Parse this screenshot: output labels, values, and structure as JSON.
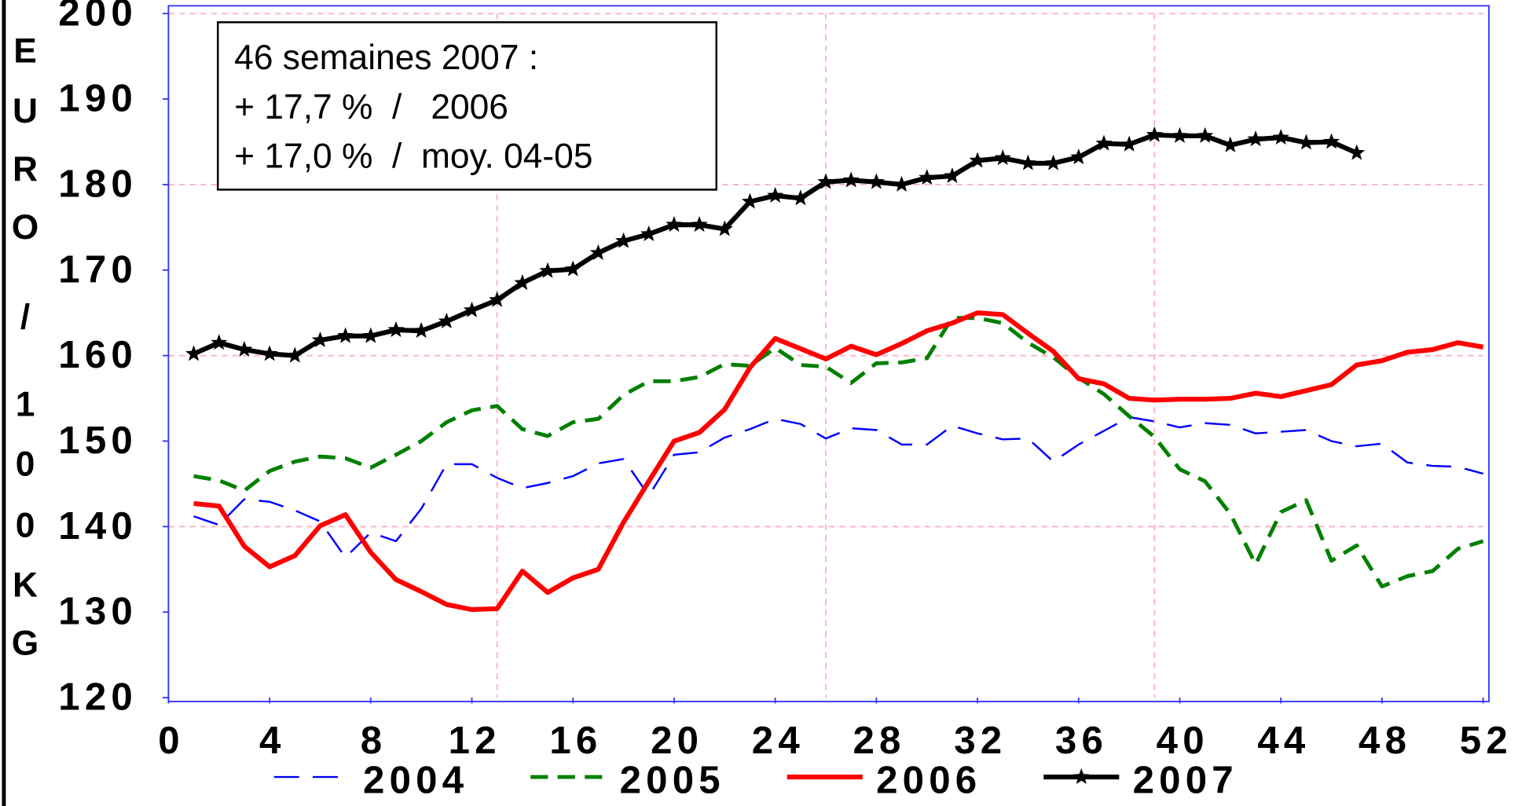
{
  "chart_data": {
    "type": "line",
    "y_label": "EURO/100KG",
    "annotation": [
      "46 semaines 2007 :",
      "+ 17,7 %  /   2006",
      "+ 17,0 %  /  moy. 04-05"
    ],
    "x": [
      1,
      2,
      3,
      4,
      5,
      6,
      7,
      8,
      9,
      10,
      11,
      12,
      13,
      14,
      15,
      16,
      17,
      18,
      19,
      20,
      21,
      22,
      23,
      24,
      25,
      26,
      27,
      28,
      29,
      30,
      31,
      32,
      33,
      34,
      35,
      36,
      37,
      38,
      39,
      40,
      41,
      42,
      43,
      44,
      45,
      46,
      47,
      48,
      49,
      50,
      51,
      52
    ],
    "series": [
      {
        "name": "2004",
        "color": "#0000ff",
        "line_style": "long-dash",
        "width": 2,
        "values": [
          141.2,
          140.2,
          143.2,
          142.9,
          141.9,
          140.6,
          136.4,
          139.3,
          138.3,
          142.1,
          147.3,
          147.3,
          145.7,
          144.5,
          145.1,
          145.9,
          147.4,
          147.9,
          143.6,
          148.4,
          148.7,
          150.4,
          151.4,
          152.6,
          152.0,
          150.3,
          151.5,
          151.3,
          149.6,
          149.6,
          151.8,
          150.9,
          150.2,
          150.3,
          147.6,
          149.6,
          151.2,
          152.8,
          152.3,
          151.6,
          152.1,
          151.9,
          150.9,
          151.1,
          151.3,
          150.0,
          149.4,
          149.7,
          147.5,
          147.1,
          147.0,
          146.2
        ]
      },
      {
        "name": "2005",
        "color": "#008000",
        "line_style": "dash",
        "width": 4,
        "values": [
          145.9,
          145.4,
          144.2,
          146.5,
          147.6,
          148.2,
          148.0,
          146.9,
          148.4,
          150.0,
          152.2,
          153.6,
          154.1,
          151.4,
          150.6,
          152.2,
          152.6,
          155.4,
          157.0,
          157.0,
          157.5,
          159.0,
          158.8,
          160.9,
          158.9,
          158.7,
          156.8,
          159.1,
          159.2,
          159.7,
          164.4,
          164.4,
          163.8,
          161.5,
          159.8,
          157.4,
          155.5,
          152.9,
          150.5,
          146.7,
          145.3,
          141.5,
          135.6,
          141.7,
          143.1,
          136.0,
          137.8,
          133.0,
          134.2,
          134.8,
          137.4,
          138.3
        ]
      },
      {
        "name": "2006",
        "color": "#ff0000",
        "line_style": "solid",
        "width": 5,
        "values": [
          142.7,
          142.4,
          137.7,
          135.3,
          136.6,
          140.1,
          141.4,
          137.0,
          133.8,
          132.4,
          130.9,
          130.3,
          130.4,
          134.8,
          132.3,
          134.0,
          135.0,
          140.5,
          145.3,
          150.0,
          151.0,
          153.7,
          158.6,
          162.0,
          160.8,
          159.6,
          161.1,
          160.1,
          161.4,
          162.9,
          163.8,
          165.0,
          164.8,
          162.6,
          160.5,
          157.3,
          156.7,
          155.0,
          154.8,
          154.9,
          154.9,
          155.0,
          155.6,
          155.2,
          155.9,
          156.6,
          158.9,
          159.4,
          160.4,
          160.7,
          161.5,
          161.0
        ]
      },
      {
        "name": "2007",
        "color": "#000000",
        "line_style": "solid",
        "width": 5,
        "marker": "star",
        "values": [
          160.2,
          161.5,
          160.7,
          160.2,
          160.0,
          161.8,
          162.3,
          162.3,
          163.0,
          162.9,
          164.0,
          165.3,
          166.5,
          168.5,
          169.9,
          170.1,
          172.0,
          173.4,
          174.2,
          175.3,
          175.3,
          174.8,
          178.0,
          178.7,
          178.4,
          180.3,
          180.5,
          180.3,
          180.0,
          180.8,
          181.0,
          182.8,
          183.1,
          182.5,
          182.5,
          183.2,
          184.8,
          184.7,
          185.8,
          185.7,
          185.7,
          184.6,
          185.3,
          185.5,
          184.9,
          185.0,
          183.7,
          null,
          null,
          null,
          null,
          null
        ]
      }
    ],
    "xlim": [
      0,
      52
    ],
    "xticks": [
      0,
      4,
      8,
      12,
      16,
      20,
      24,
      28,
      32,
      36,
      40,
      44,
      48,
      52
    ],
    "ylim": [
      120,
      200
    ],
    "yticks": [
      120,
      130,
      140,
      150,
      160,
      170,
      180,
      190,
      200
    ],
    "xgrid": [
      13,
      26,
      39
    ],
    "ygrid": [
      140,
      160,
      180,
      200
    ],
    "grid_color": "#ffb0c0",
    "legend": "bottom"
  }
}
